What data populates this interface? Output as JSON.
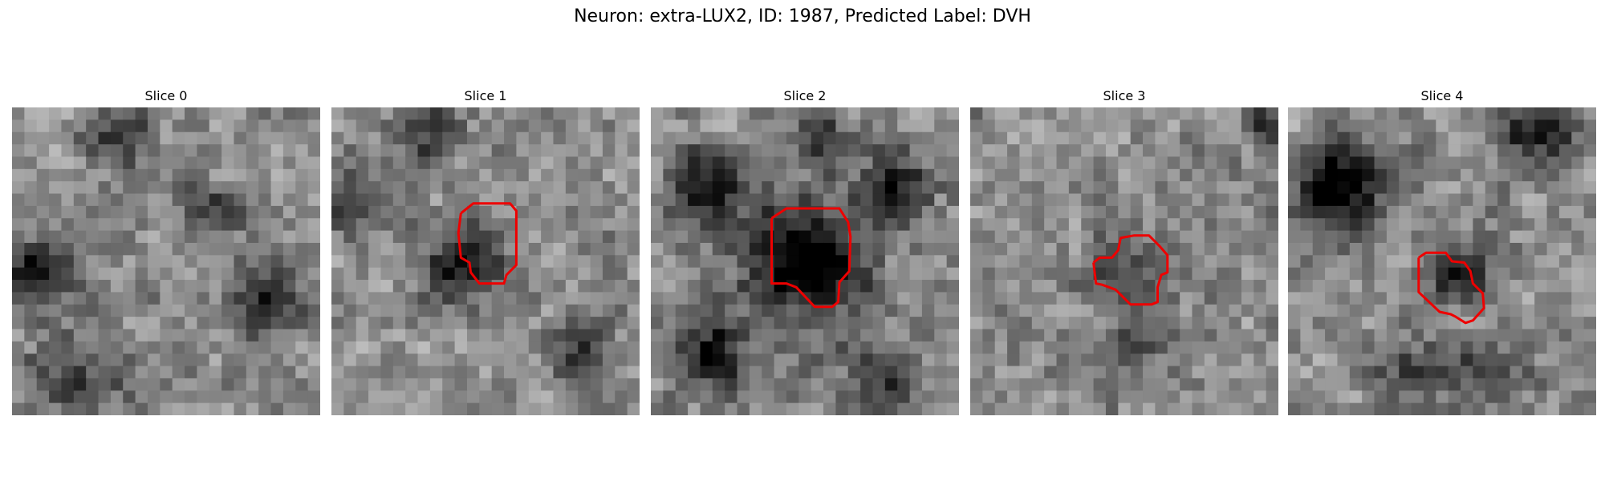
{
  "figure": {
    "title": "Neuron: extra-LUX2, ID: 1987, Predicted Label: DVH"
  },
  "grid_size": 25,
  "contour_color": "#ee0000",
  "slices": [
    {
      "title": "Slice 0",
      "seed": 11,
      "contour": [],
      "blobs": [
        [
          0.05,
          0.55,
          0.12,
          0.9
        ],
        [
          0.35,
          0.08,
          0.1,
          0.85
        ],
        [
          0.2,
          0.9,
          0.15,
          0.6
        ],
        [
          0.85,
          0.62,
          0.12,
          0.8
        ],
        [
          0.65,
          0.35,
          0.1,
          0.5
        ]
      ]
    },
    {
      "title": "Slice 1",
      "seed": 23,
      "contour": [
        [
          10.5,
          8.6
        ],
        [
          11.5,
          7.8
        ],
        [
          14.5,
          7.8
        ],
        [
          15.0,
          8.4
        ],
        [
          15.0,
          12.8
        ],
        [
          14.2,
          13.6
        ],
        [
          14.0,
          14.3
        ],
        [
          12.0,
          14.3
        ],
        [
          11.3,
          13.4
        ],
        [
          11.2,
          12.6
        ],
        [
          10.5,
          12.2
        ],
        [
          10.3,
          10.2
        ],
        [
          10.5,
          8.6
        ]
      ],
      "blobs": [
        [
          0.43,
          0.5,
          0.12,
          1.0
        ],
        [
          0.05,
          0.3,
          0.1,
          0.7
        ],
        [
          0.8,
          0.8,
          0.1,
          0.7
        ],
        [
          0.3,
          0.1,
          0.1,
          0.6
        ]
      ]
    },
    {
      "title": "Slice 2",
      "seed": 37,
      "contour": [
        [
          9.8,
          9.0
        ],
        [
          11.0,
          8.2
        ],
        [
          15.3,
          8.2
        ],
        [
          15.8,
          9.0
        ],
        [
          16.0,
          9.3
        ],
        [
          16.2,
          10.5
        ],
        [
          16.1,
          13.3
        ],
        [
          15.3,
          14.2
        ],
        [
          15.2,
          15.8
        ],
        [
          14.7,
          16.2
        ],
        [
          13.3,
          16.2
        ],
        [
          11.8,
          14.6
        ],
        [
          11.0,
          14.3
        ],
        [
          9.8,
          14.3
        ],
        [
          9.8,
          9.0
        ]
      ],
      "blobs": [
        [
          0.5,
          0.5,
          0.2,
          1.2
        ],
        [
          0.18,
          0.25,
          0.12,
          1.0
        ],
        [
          0.8,
          0.25,
          0.1,
          0.9
        ],
        [
          0.2,
          0.8,
          0.12,
          0.9
        ],
        [
          0.75,
          0.9,
          0.12,
          0.7
        ],
        [
          0.55,
          0.1,
          0.08,
          0.7
        ]
      ]
    },
    {
      "title": "Slice 3",
      "seed": 41,
      "contour": [
        [
          10.0,
          12.6
        ],
        [
          10.5,
          12.2
        ],
        [
          11.5,
          12.2
        ],
        [
          12.0,
          11.6
        ],
        [
          12.2,
          10.6
        ],
        [
          13.3,
          10.4
        ],
        [
          14.5,
          10.4
        ],
        [
          15.4,
          11.3
        ],
        [
          16.0,
          12.0
        ],
        [
          16.0,
          13.4
        ],
        [
          15.5,
          13.6
        ],
        [
          15.2,
          14.6
        ],
        [
          15.2,
          15.8
        ],
        [
          14.7,
          16.0
        ],
        [
          13.0,
          16.0
        ],
        [
          11.8,
          14.8
        ],
        [
          10.7,
          14.4
        ],
        [
          10.2,
          14.3
        ],
        [
          10.0,
          12.6
        ]
      ],
      "blobs": [
        [
          0.5,
          0.55,
          0.14,
          0.5
        ],
        [
          0.5,
          0.8,
          0.1,
          0.4
        ],
        [
          0.95,
          0.05,
          0.06,
          0.7
        ]
      ]
    },
    {
      "title": "Slice 4",
      "seed": 53,
      "contour": [
        [
          10.6,
          12.2
        ],
        [
          11.2,
          11.8
        ],
        [
          12.8,
          11.8
        ],
        [
          13.3,
          12.5
        ],
        [
          14.3,
          12.6
        ],
        [
          14.8,
          13.3
        ],
        [
          15.0,
          14.3
        ],
        [
          15.8,
          15.1
        ],
        [
          15.9,
          16.3
        ],
        [
          15.0,
          17.3
        ],
        [
          14.4,
          17.5
        ],
        [
          13.6,
          17.0
        ],
        [
          13.2,
          16.8
        ],
        [
          12.3,
          16.6
        ],
        [
          10.6,
          15.0
        ],
        [
          10.6,
          12.2
        ]
      ],
      "blobs": [
        [
          0.17,
          0.25,
          0.15,
          1.2
        ],
        [
          0.55,
          0.55,
          0.1,
          1.0
        ],
        [
          0.8,
          0.1,
          0.12,
          0.8
        ],
        [
          0.65,
          0.85,
          0.12,
          0.6
        ],
        [
          0.4,
          0.85,
          0.1,
          0.5
        ]
      ]
    }
  ]
}
